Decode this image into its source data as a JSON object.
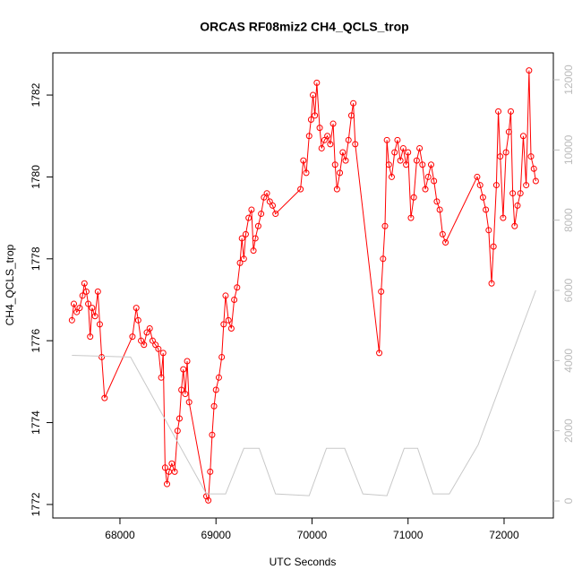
{
  "chart_data": {
    "type": "line",
    "title": "ORCAS RF08miz2 CH4_QCLS_trop",
    "x_label": "UTC Seconds",
    "y_label": "CH4_QCLS_trop",
    "xlim": [
      67301,
      72513
    ],
    "ylim": [
      1771.67,
      1783.03
    ],
    "y2lim": [
      -485,
      12766
    ],
    "xticks": [
      68000,
      69000,
      70000,
      71000,
      72000
    ],
    "yticks": [
      1772,
      1774,
      1776,
      1778,
      1780,
      1782
    ],
    "y2ticks": [
      0,
      2000,
      4000,
      6000,
      8000,
      10000,
      12000
    ],
    "series": [
      {
        "color": "#ff0000",
        "markers": true,
        "axis": "y",
        "x": [
          67500,
          67520,
          67550,
          67580,
          67610,
          67630,
          67650,
          67670,
          67690,
          67710,
          67740,
          67770,
          67790,
          67810,
          67840,
          68130,
          68170,
          68190,
          68220,
          68250,
          68280,
          68310,
          68340,
          68370,
          68400,
          68430,
          68450,
          68470,
          68490,
          68510,
          68540,
          68570,
          68600,
          68620,
          68640,
          68660,
          68680,
          68700,
          68720,
          68900,
          68920,
          68940,
          68960,
          68980,
          69000,
          69030,
          69060,
          69080,
          69100,
          69130,
          69160,
          69190,
          69220,
          69250,
          69270,
          69290,
          69310,
          69340,
          69370,
          69390,
          69410,
          69440,
          69470,
          69500,
          69530,
          69560,
          69590,
          69620,
          69880,
          69910,
          69940,
          69970,
          69990,
          70010,
          70030,
          70050,
          70080,
          70100,
          70130,
          70160,
          70190,
          70220,
          70240,
          70260,
          70290,
          70320,
          70350,
          70380,
          70410,
          70430,
          70450,
          70700,
          70720,
          70740,
          70760,
          70780,
          70800,
          70830,
          70860,
          70890,
          70920,
          70950,
          70980,
          71000,
          71030,
          71060,
          71090,
          71120,
          71150,
          71180,
          71210,
          71240,
          71270,
          71300,
          71330,
          71360,
          71390,
          71720,
          71750,
          71780,
          71810,
          71840,
          71870,
          71890,
          71920,
          71940,
          71960,
          71990,
          72020,
          72050,
          72070,
          72090,
          72110,
          72140,
          72170,
          72200,
          72230,
          72260,
          72280,
          72310,
          72330
        ],
        "values": [
          1776.5,
          1776.9,
          1776.7,
          1776.8,
          1777.1,
          1777.4,
          1777.2,
          1776.9,
          1776.1,
          1776.8,
          1776.6,
          1777.2,
          1776.4,
          1775.6,
          1774.6,
          1776.1,
          1776.8,
          1776.5,
          1776.0,
          1775.9,
          1776.2,
          1776.3,
          1776.0,
          1775.9,
          1775.8,
          1775.1,
          1775.7,
          1772.9,
          1772.5,
          1772.8,
          1773.0,
          1772.8,
          1773.8,
          1774.1,
          1774.8,
          1775.3,
          1774.7,
          1775.5,
          1774.5,
          1772.2,
          1772.1,
          1772.8,
          1773.7,
          1774.4,
          1774.8,
          1775.1,
          1775.6,
          1776.4,
          1777.1,
          1776.5,
          1776.3,
          1777.0,
          1777.3,
          1777.9,
          1778.5,
          1778.0,
          1778.6,
          1779.0,
          1779.2,
          1778.2,
          1778.5,
          1778.8,
          1779.1,
          1779.5,
          1779.6,
          1779.4,
          1779.3,
          1779.1,
          1779.7,
          1780.4,
          1780.1,
          1781.0,
          1781.4,
          1782.0,
          1781.5,
          1782.3,
          1781.2,
          1780.7,
          1780.9,
          1781.0,
          1780.8,
          1781.3,
          1780.3,
          1779.7,
          1780.1,
          1780.6,
          1780.4,
          1780.9,
          1781.5,
          1781.8,
          1780.8,
          1775.7,
          1777.2,
          1778.0,
          1778.8,
          1780.9,
          1780.3,
          1780.0,
          1780.6,
          1780.9,
          1780.4,
          1780.7,
          1780.3,
          1780.6,
          1779.0,
          1779.5,
          1780.4,
          1780.7,
          1780.3,
          1779.7,
          1780.0,
          1780.3,
          1779.9,
          1779.4,
          1779.2,
          1778.6,
          1778.4,
          1780.0,
          1779.8,
          1779.5,
          1779.2,
          1778.7,
          1777.4,
          1778.3,
          1779.8,
          1781.6,
          1780.5,
          1779.0,
          1780.6,
          1781.1,
          1781.6,
          1779.6,
          1778.8,
          1779.3,
          1779.6,
          1781.0,
          1779.8,
          1782.6,
          1780.5,
          1780.2,
          1779.9
        ]
      },
      {
        "color": "#c8c8c8",
        "markers": false,
        "axis": "y2",
        "x": [
          67500,
          68110,
          68900,
          69100,
          69290,
          69450,
          69620,
          69970,
          70150,
          70340,
          70530,
          70780,
          70960,
          71100,
          71260,
          71430,
          71730,
          72330
        ],
        "values": [
          4150,
          4100,
          200,
          200,
          1500,
          1500,
          200,
          150,
          1500,
          1500,
          200,
          150,
          1500,
          1500,
          200,
          200,
          1600,
          6000
        ]
      }
    ]
  }
}
